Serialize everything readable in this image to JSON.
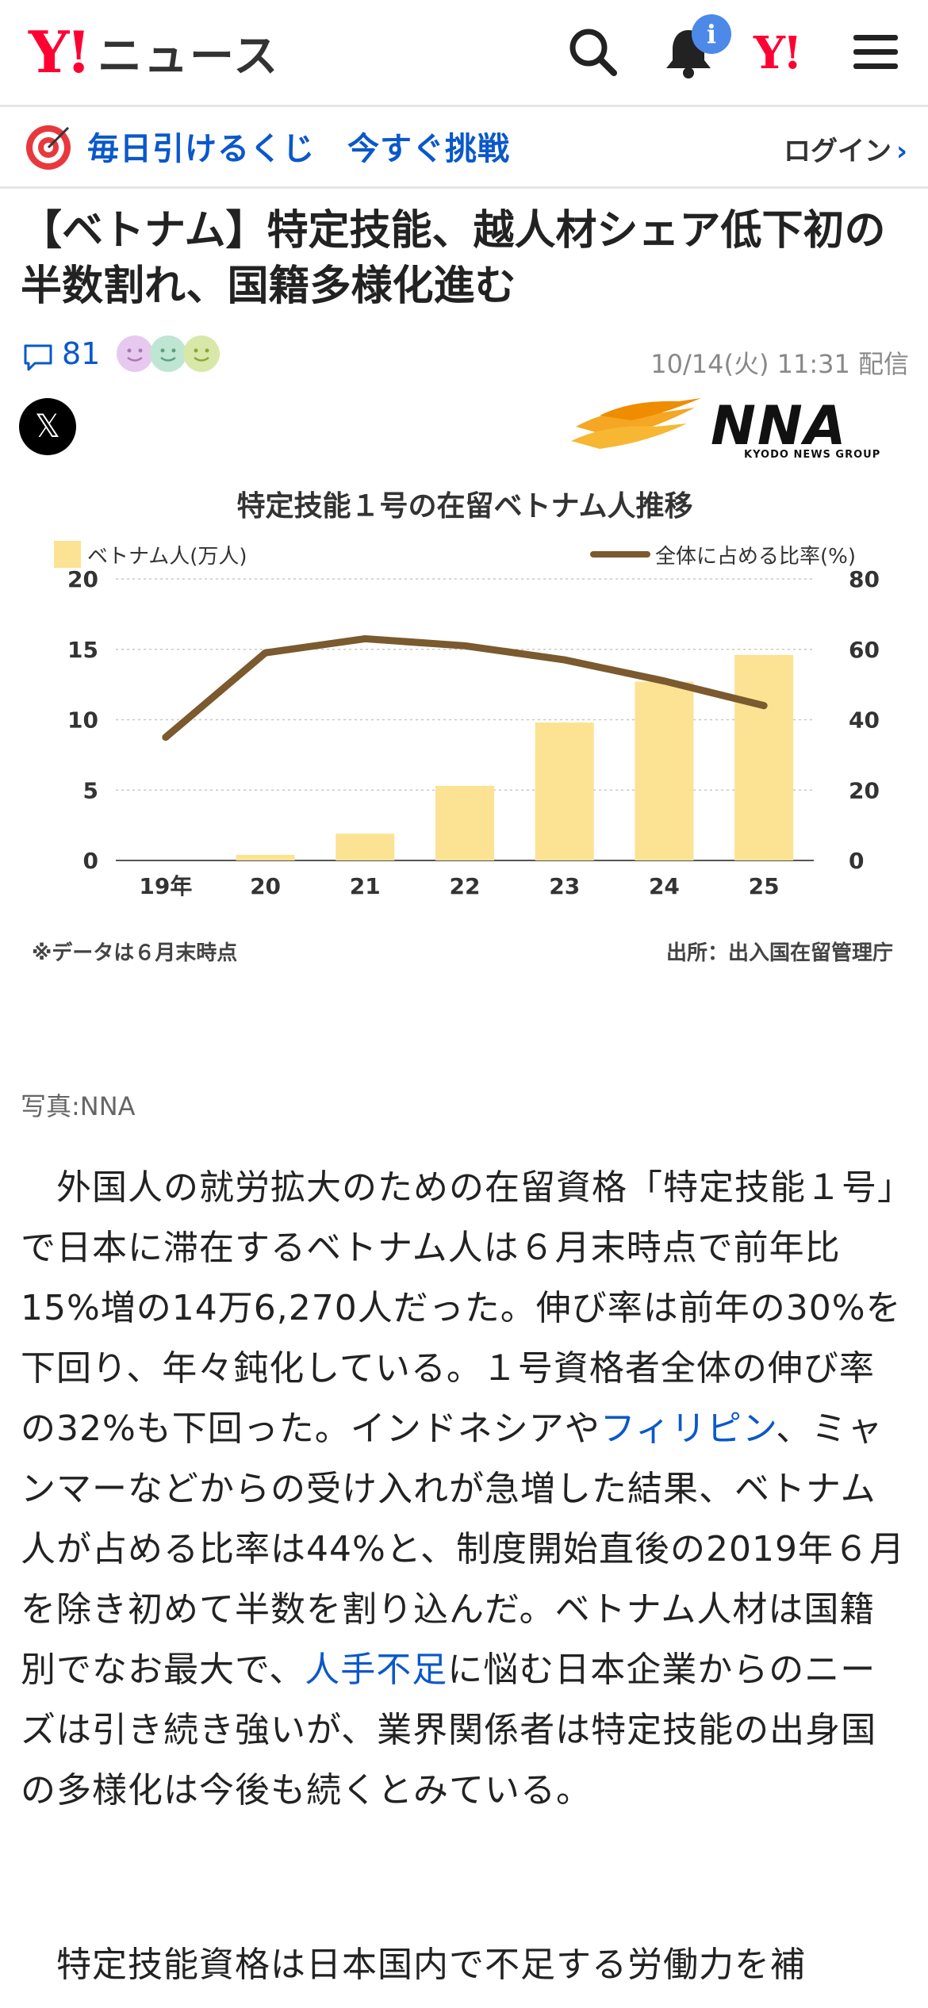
{
  "header": {
    "logo_mark": "Y!",
    "logo_text": "ニュース",
    "notification_badge": "i",
    "mini_logo": "Y!",
    "icons": [
      "search-icon",
      "bell-icon",
      "menu-icon"
    ]
  },
  "promo": {
    "text": "毎日引けるくじ　今すぐ挑戦",
    "login": "ログイン"
  },
  "article": {
    "title": "【ベトナム】特定技能、越人材シェア低下初の半数割れ、国籍多様化進む",
    "comment_count": "81",
    "date": "10/14(火) 11:31 配信",
    "x_label": "𝕏",
    "nna_logo_text": "NNA",
    "nna_sub": "KYODO NEWS GROUP",
    "photo_credit": "写真:NNA",
    "body_p1_a": "外国人の就労拡大のための在留資格「特定技能１号」で日本に滞在するベトナム人は６月末時点で前年比15%増の14万6,270人だった。伸び率は前年の30%を下回り、年々鈍化している。１号資格者全体の伸び率の32%も下回った。インドネシアや",
    "body_link1": "フィリピン",
    "body_p1_b": "、ミャンマーなどからの受け入れが急増した結果、ベトナム人が占める比率は44%と、制度開始直後の2019年６月を除き初めて半数を割り込んだ。ベトナム人材は国籍別でなお最大で、",
    "body_link2": "人手不足",
    "body_p1_c": "に悩む日本企業からのニーズは引き続き強いが、業界関係者は特定技能の出身国の多様化は今後も続くとみている。",
    "body_p2": "特定技能資格は日本国内で不足する労働力を補"
  },
  "chart_data": {
    "type": "bar",
    "title": "特定技能１号の在留ベトナム人推移",
    "categories": [
      "19年",
      "20",
      "21",
      "22",
      "23",
      "24",
      "25"
    ],
    "series": [
      {
        "name": "ベトナム人(万人)",
        "type": "bar",
        "axis": "left",
        "values": [
          0.0,
          0.4,
          1.9,
          5.3,
          9.8,
          12.7,
          14.6
        ],
        "color": "#fbe393"
      },
      {
        "name": "全体に占める比率(%)",
        "type": "line",
        "axis": "right",
        "values": [
          35,
          59,
          63,
          61,
          57,
          51,
          44
        ],
        "color": "#7a5a2e"
      }
    ],
    "ylim_left": [
      0,
      20
    ],
    "ylim_right": [
      0,
      80
    ],
    "yticks_left": [
      "0",
      "5",
      "10",
      "15",
      "20"
    ],
    "yticks_right": [
      "0",
      "20",
      "40",
      "60",
      "80"
    ],
    "legend_position": "top",
    "note": "※データは６月末時点",
    "source": "出所：出入国在留管理庁"
  }
}
